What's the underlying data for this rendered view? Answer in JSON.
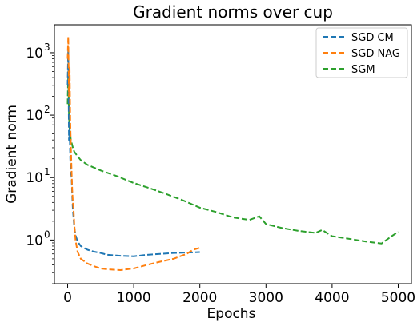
{
  "chart_data": {
    "type": "line",
    "title": "Gradient norms over cup",
    "xlabel": "Epochs",
    "ylabel": "Gradient norm",
    "xlim": [
      -200,
      5200
    ],
    "ylim": [
      0.2,
      2800
    ],
    "yscale": "log",
    "x_ticks": [
      0,
      1000,
      2000,
      3000,
      4000,
      5000
    ],
    "y_ticks": [
      1,
      10,
      100,
      1000
    ],
    "y_tick_labels": [
      "10",
      "10",
      "10",
      "10"
    ],
    "y_tick_exponents": [
      "0",
      "1",
      "2",
      "3"
    ],
    "grid": false,
    "legend_position": "top-right",
    "series": [
      {
        "name": "SGD CM",
        "color": "#1f77b4",
        "style": "dashed",
        "x": [
          0,
          10,
          20,
          30,
          40,
          50,
          60,
          70,
          80,
          90,
          100,
          120,
          150,
          200,
          300,
          400,
          500,
          600,
          800,
          1000,
          1200,
          1400,
          1600,
          1800,
          2000
        ],
        "y": [
          300,
          1200,
          40,
          60,
          20,
          12,
          10,
          5,
          3,
          2.2,
          1.6,
          1.2,
          0.95,
          0.8,
          0.7,
          0.65,
          0.62,
          0.58,
          0.56,
          0.55,
          0.58,
          0.6,
          0.62,
          0.63,
          0.64
        ]
      },
      {
        "name": "SGD NAG",
        "color": "#ff7f0e",
        "style": "dashed",
        "x": [
          0,
          10,
          20,
          30,
          40,
          50,
          60,
          70,
          80,
          90,
          100,
          120,
          150,
          200,
          300,
          400,
          500,
          600,
          800,
          1000,
          1200,
          1400,
          1600,
          1800,
          1900,
          2000
        ],
        "y": [
          800,
          1800,
          200,
          600,
          80,
          30,
          12,
          6,
          4,
          3,
          1.8,
          1.0,
          0.65,
          0.5,
          0.42,
          0.38,
          0.35,
          0.34,
          0.33,
          0.35,
          0.4,
          0.45,
          0.5,
          0.6,
          0.7,
          0.75
        ]
      },
      {
        "name": "SGM",
        "color": "#2ca02c",
        "style": "dashed",
        "x": [
          0,
          10,
          20,
          30,
          50,
          80,
          100,
          150,
          200,
          300,
          500,
          750,
          1000,
          1250,
          1500,
          1750,
          2000,
          2250,
          2500,
          2750,
          2900,
          3000,
          3250,
          3500,
          3750,
          3850,
          4000,
          4250,
          4500,
          4750,
          4900,
          5000
        ],
        "y": [
          150,
          500,
          100,
          60,
          40,
          30,
          26,
          22,
          19,
          16,
          13,
          10.5,
          8.2,
          6.7,
          5.4,
          4.3,
          3.3,
          2.8,
          2.3,
          2.1,
          2.4,
          1.8,
          1.55,
          1.4,
          1.3,
          1.45,
          1.15,
          1.05,
          0.95,
          0.88,
          1.15,
          1.35
        ]
      }
    ]
  }
}
